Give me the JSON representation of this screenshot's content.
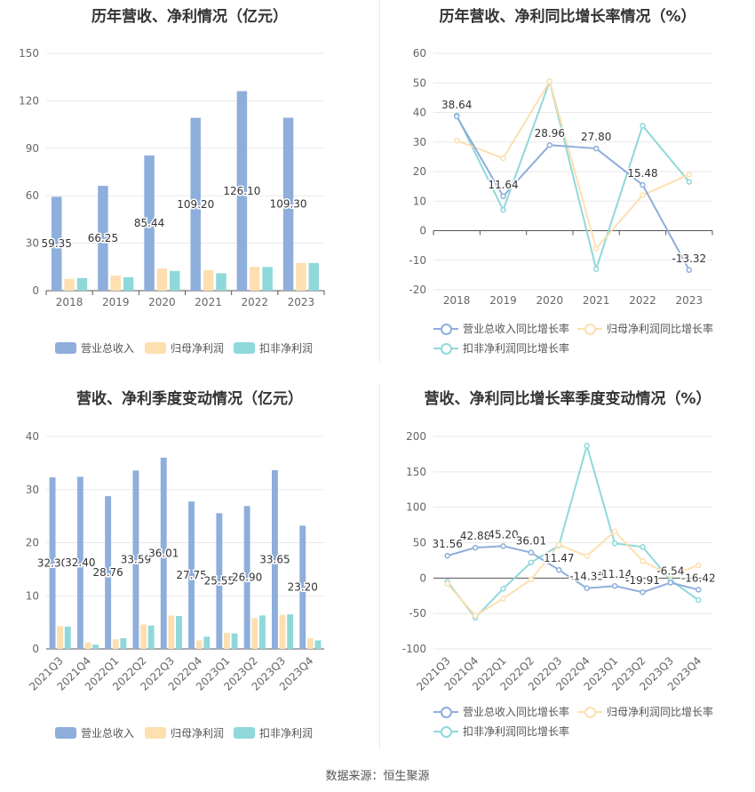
{
  "footer": {
    "source": "数据来源：恒生聚源"
  },
  "colors": {
    "revenue": "#8eaedb",
    "parent": "#fddfb0",
    "deducted": "#8fd8da",
    "revenue_line": "#8eaedb",
    "parent_line": "#fddfb0",
    "deducted_line": "#8fd8da"
  },
  "chart_data": [
    {
      "type": "bar",
      "title": "历年营收、净利情况（亿元）",
      "categories": [
        "2018",
        "2019",
        "2020",
        "2021",
        "2022",
        "2023"
      ],
      "ylim": [
        0,
        150
      ],
      "yticks": [
        0,
        30,
        60,
        90,
        120,
        150
      ],
      "series": [
        {
          "name": "营业总收入",
          "values": [
            59.35,
            66.25,
            85.44,
            109.2,
            126.1,
            109.3
          ],
          "labels": [
            "59.35",
            "66.25",
            "85.44",
            "109.20",
            "126.10",
            "109.30"
          ]
        },
        {
          "name": "归母净利润",
          "values": [
            7.5,
            9.5,
            14,
            13,
            15,
            17.5
          ]
        },
        {
          "name": "扣非净利润",
          "values": [
            8,
            8.5,
            12.5,
            11,
            15,
            17.5
          ]
        }
      ],
      "legend": "bottom"
    },
    {
      "type": "line",
      "title": "历年营收、净利同比增长率情况（%）",
      "categories": [
        "2018",
        "2019",
        "2020",
        "2021",
        "2022",
        "2023"
      ],
      "ylim": [
        -20,
        60
      ],
      "yticks": [
        -20,
        -10,
        0,
        10,
        20,
        30,
        40,
        50,
        60
      ],
      "series": [
        {
          "name": "营业总收入同比增长率",
          "values": [
            38.64,
            11.64,
            28.96,
            27.8,
            15.48,
            -13.32
          ],
          "labels": [
            "38.64",
            "11.64",
            "28.96",
            "27.80",
            "15.48",
            "-13.32"
          ]
        },
        {
          "name": "归母净利润同比增长率",
          "values": [
            30.5,
            24.5,
            50.5,
            -6,
            12,
            19
          ]
        },
        {
          "name": "扣非净利润同比增长率",
          "values": [
            39,
            7,
            50.5,
            -13,
            35.5,
            16.5
          ]
        }
      ],
      "legend": "bottom"
    },
    {
      "type": "bar",
      "title": "营收、净利季度变动情况（亿元）",
      "categories": [
        "2021Q3",
        "2021Q4",
        "2022Q1",
        "2022Q2",
        "2022Q3",
        "2022Q4",
        "2023Q1",
        "2023Q2",
        "2023Q3",
        "2023Q4"
      ],
      "ylim": [
        0,
        40
      ],
      "yticks": [
        0,
        10,
        20,
        30,
        40
      ],
      "series": [
        {
          "name": "营业总收入",
          "values": [
            32.3,
            32.4,
            28.76,
            33.59,
            36.01,
            27.75,
            25.55,
            26.9,
            33.65,
            23.2
          ],
          "labels": [
            "32.30",
            "32.40",
            "28.76",
            "33.59",
            "36.01",
            "27.75",
            "25.55",
            "26.90",
            "33.65",
            "23.20"
          ]
        },
        {
          "name": "归母净利润",
          "values": [
            4.3,
            1.2,
            1.8,
            4.6,
            6.3,
            1.6,
            3.0,
            5.8,
            6.4,
            2.0
          ]
        },
        {
          "name": "扣非净利润",
          "values": [
            4.2,
            0.8,
            2.0,
            4.4,
            6.2,
            2.3,
            2.9,
            6.3,
            6.5,
            1.6
          ]
        }
      ],
      "legend": "bottom"
    },
    {
      "type": "line",
      "title": "营收、净利同比增长率季度变动情况（%）",
      "categories": [
        "2021Q3",
        "2021Q4",
        "2022Q1",
        "2022Q2",
        "2022Q3",
        "2022Q4",
        "2023Q1",
        "2023Q2",
        "2023Q3",
        "2023Q4"
      ],
      "ylim": [
        -100,
        200
      ],
      "yticks": [
        -100,
        -50,
        0,
        50,
        100,
        150,
        200
      ],
      "series": [
        {
          "name": "营业总收入同比增长率",
          "values": [
            31.56,
            42.88,
            45.2,
            36.01,
            11.47,
            -14.33,
            -11.14,
            -19.91,
            -6.54,
            -16.42
          ],
          "labels": [
            "31.56",
            "42.88",
            "45.20",
            "36.01",
            "11.47",
            "-14.33",
            "-11.14",
            "-19.91",
            "-6.54",
            "-16.42"
          ]
        },
        {
          "name": "归母净利润同比增长率",
          "values": [
            -8,
            -53,
            -29,
            -2,
            47,
            31,
            66,
            24,
            4,
            18
          ]
        },
        {
          "name": "扣非净利润同比增长率",
          "values": [
            -5,
            -56,
            -15,
            22,
            46,
            187,
            49,
            44,
            -3,
            -31
          ]
        }
      ],
      "legend": "bottom"
    }
  ]
}
